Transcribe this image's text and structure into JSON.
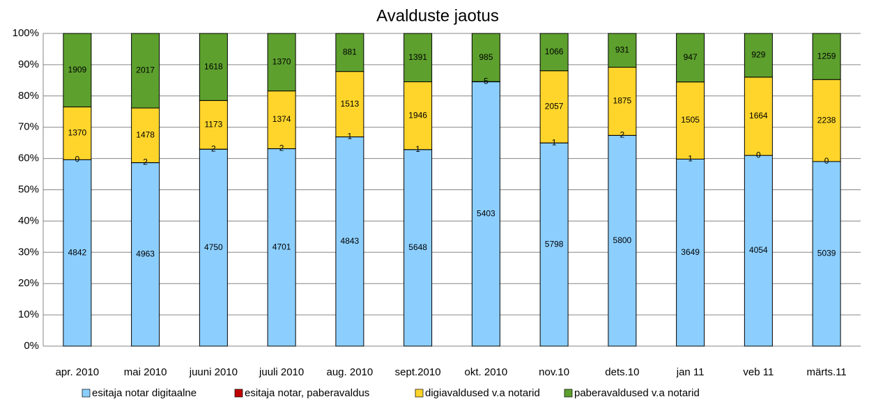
{
  "chart_data": {
    "type": "bar",
    "stacking": "percent",
    "title": "Avalduste jaotus",
    "categories": [
      "apr. 2010",
      "mai 2010",
      "juuni 2010",
      "juuli 2010",
      "aug. 2010",
      "sept.2010",
      "okt. 2010",
      "nov.10",
      "dets.10",
      "jan 11",
      "veb 11",
      "märts.11"
    ],
    "series": [
      {
        "name": "esitaja notar digitaalne",
        "color": "#8ccfff",
        "values": [
          4842,
          4963,
          4750,
          4701,
          4843,
          5648,
          5403,
          5798,
          5800,
          3649,
          4054,
          5039
        ]
      },
      {
        "name": "esitaja notar, paberavaldus",
        "color": "#c00000",
        "values": [
          0,
          2,
          2,
          2,
          1,
          1,
          5,
          1,
          2,
          1,
          0,
          0
        ]
      },
      {
        "name": "digiavaldused v.a notarid",
        "color": "#ffd52b",
        "values": [
          1370,
          1478,
          1173,
          1374,
          1513,
          1946,
          null,
          2057,
          1875,
          1505,
          1664,
          2238
        ]
      },
      {
        "name": "paberavaldused v.a notarid",
        "color": "#5da02e",
        "values": [
          1909,
          2017,
          1618,
          1370,
          881,
          1391,
          985,
          1066,
          931,
          947,
          929,
          1259
        ]
      }
    ],
    "ylim": [
      0,
      100
    ],
    "yticks": [
      {
        "value": 0,
        "label": "0%"
      },
      {
        "value": 10,
        "label": "10%"
      },
      {
        "value": 20,
        "label": "20%"
      },
      {
        "value": 30,
        "label": "30%"
      },
      {
        "value": 40,
        "label": "40%"
      },
      {
        "value": 50,
        "label": "50%"
      },
      {
        "value": 60,
        "label": "60%"
      },
      {
        "value": 70,
        "label": "70%"
      },
      {
        "value": 80,
        "label": "80%"
      },
      {
        "value": 90,
        "label": "90%"
      },
      {
        "value": 100,
        "label": "100%"
      }
    ],
    "grid": true,
    "legend": "bottom"
  }
}
